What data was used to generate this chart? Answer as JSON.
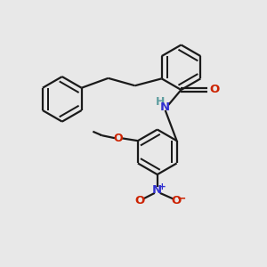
{
  "background_color": "#e8e8e8",
  "bond_color": "#1a1a1a",
  "nitrogen_color": "#3030d0",
  "oxygen_color": "#cc2200",
  "teal_color": "#5f9ea0",
  "line_width": 1.6,
  "figsize": [
    3.0,
    3.0
  ],
  "dpi": 100,
  "xlim": [
    0,
    10
  ],
  "ylim": [
    0,
    10
  ]
}
